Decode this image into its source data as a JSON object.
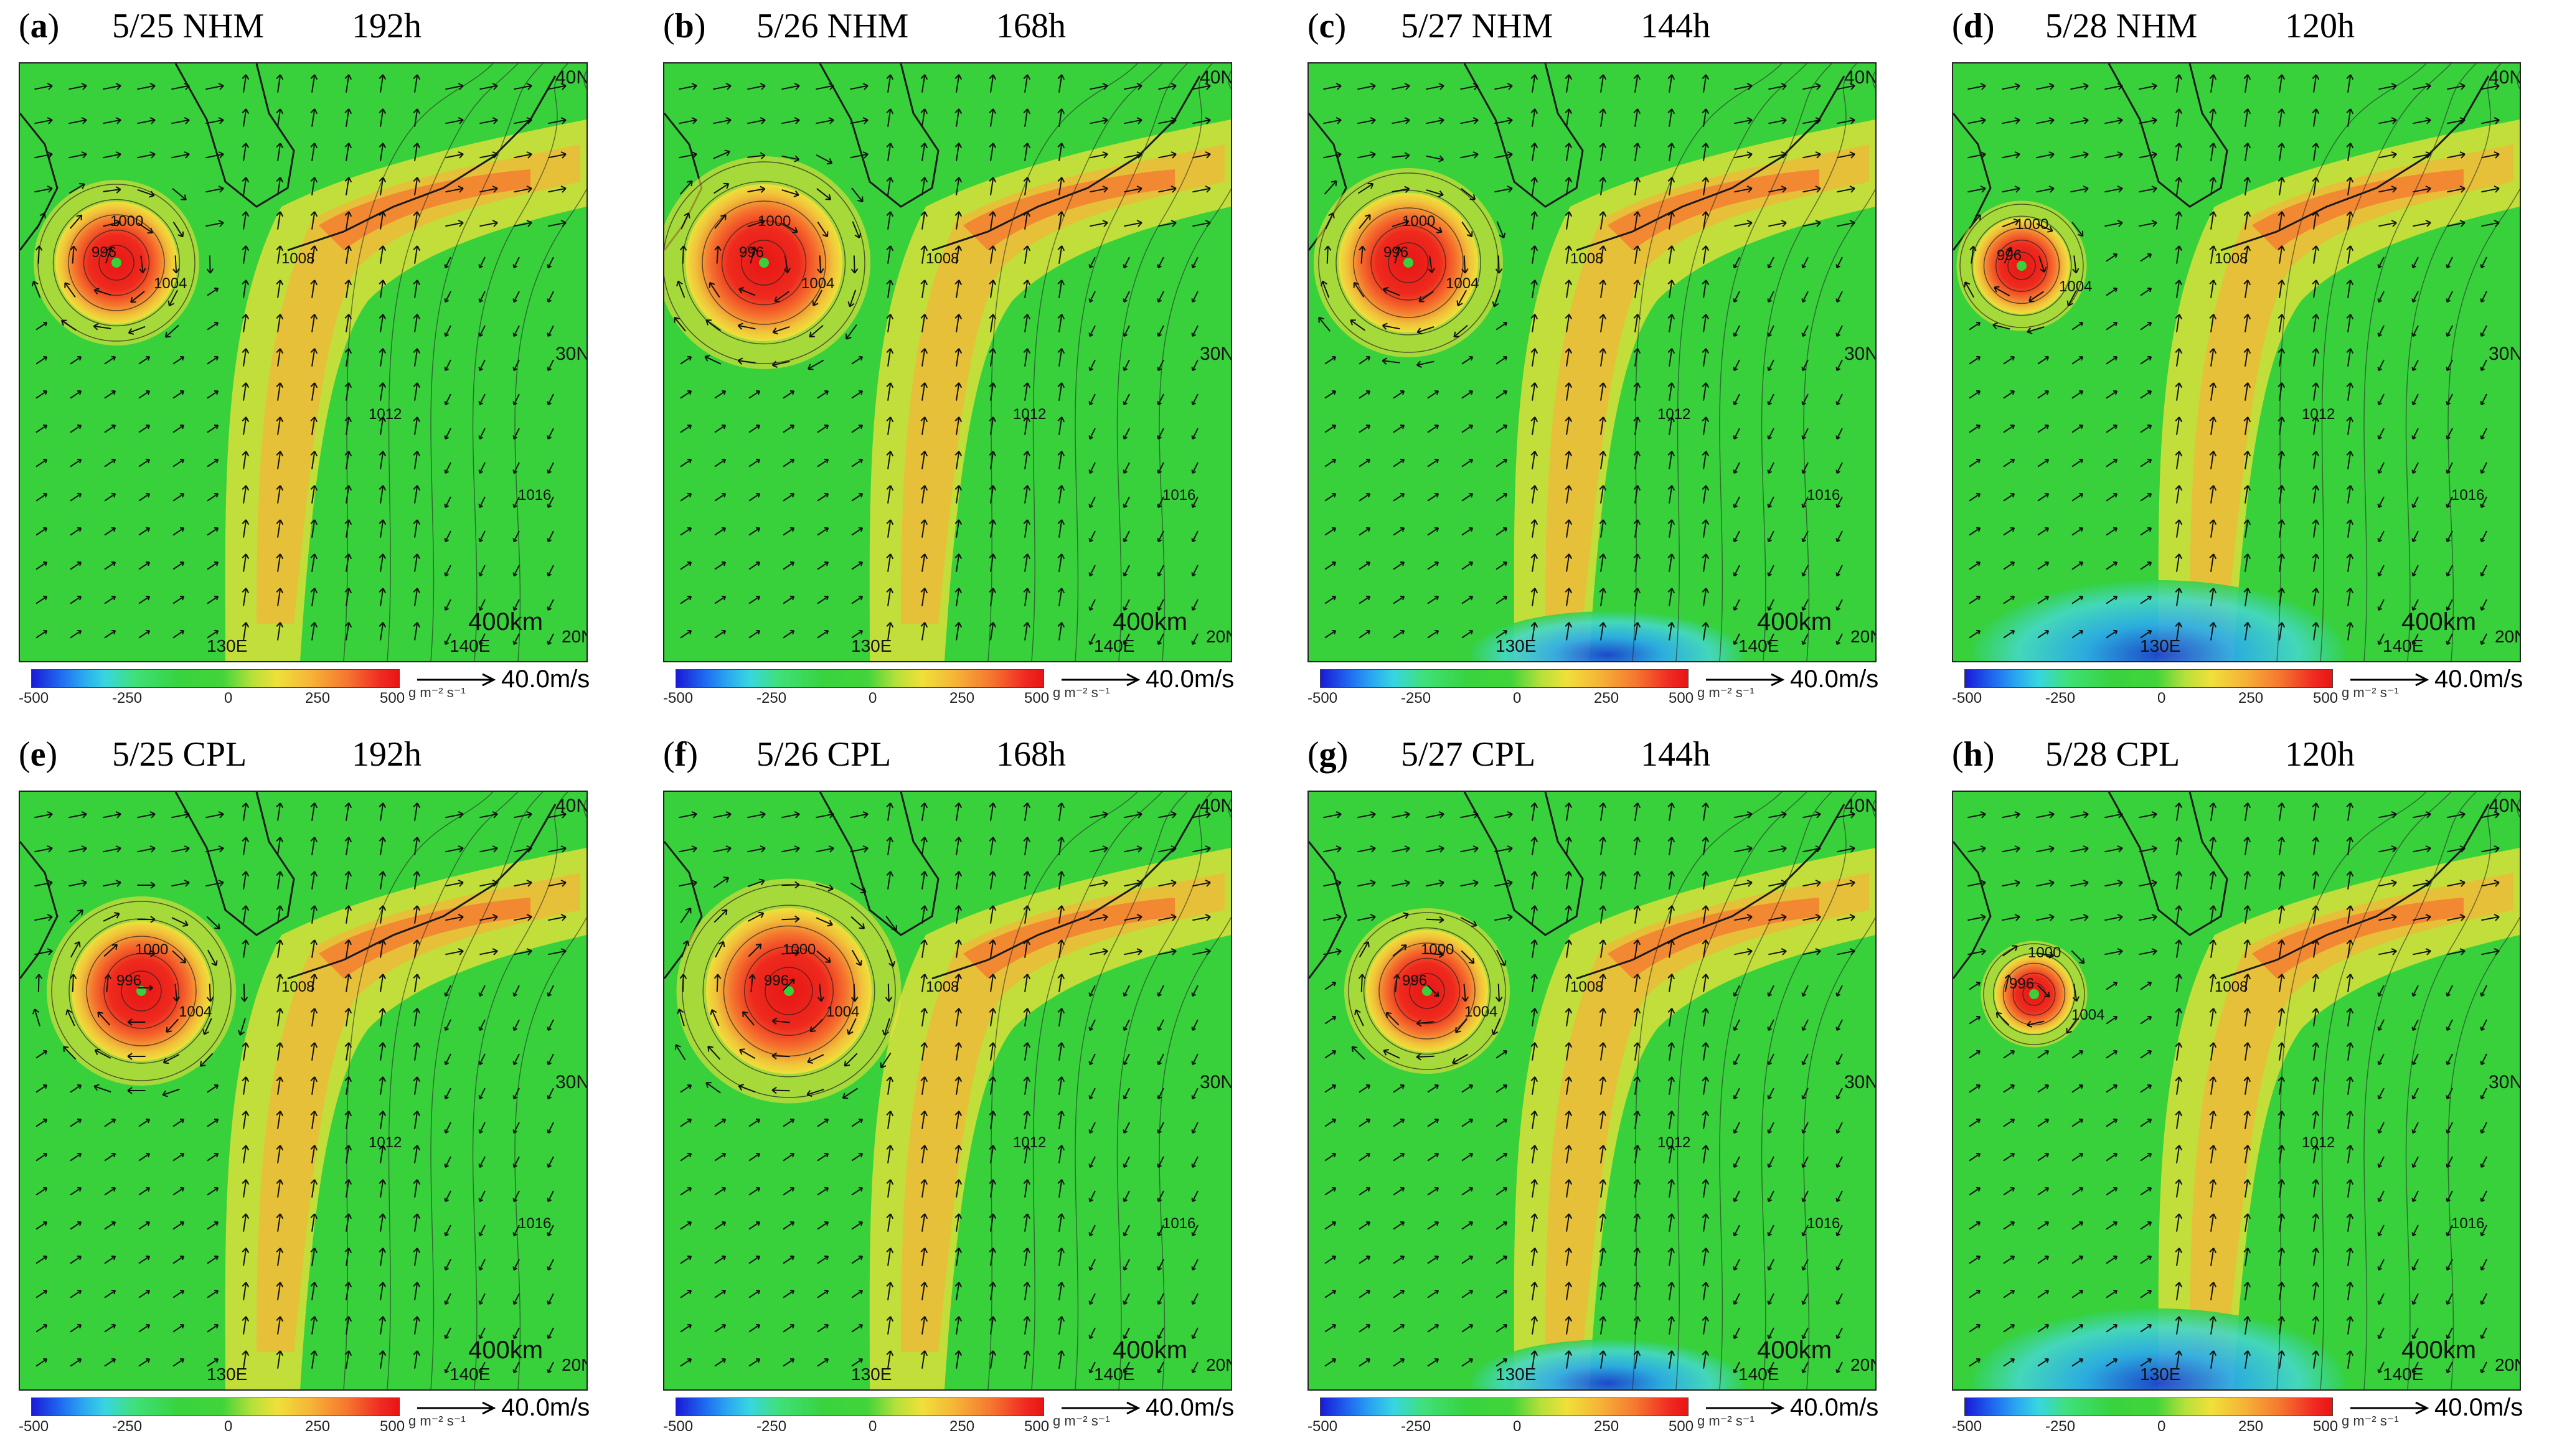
{
  "panels": [
    {
      "label": "a",
      "date": "5/25 NHM",
      "lead": "192h"
    },
    {
      "label": "b",
      "date": "5/26 NHM",
      "lead": "168h"
    },
    {
      "label": "c",
      "date": "5/27 NHM",
      "lead": "144h"
    },
    {
      "label": "d",
      "date": "5/28 NHM",
      "lead": "120h"
    },
    {
      "label": "e",
      "date": "5/25 CPL",
      "lead": "192h"
    },
    {
      "label": "f",
      "date": "5/26 CPL",
      "lead": "168h"
    },
    {
      "label": "g",
      "date": "5/27 CPL",
      "lead": "144h"
    },
    {
      "label": "h",
      "date": "5/28 CPL",
      "lead": "120h"
    }
  ],
  "colorbar": {
    "ticks": [
      "-500",
      "-250",
      "0",
      "250",
      "500"
    ],
    "unit": "g m⁻² s⁻¹",
    "colors": [
      "#1a1ad8",
      "#2aa8f0",
      "#38d33f",
      "#f0e03a",
      "#f5762f",
      "#e81515"
    ]
  },
  "vector_ref": "40.0m/s",
  "map_labels": {
    "lat_40": "40N",
    "lat_30": "30N",
    "lat_20": "20N",
    "lon_130": "130E",
    "lon_140": "140E",
    "scale": "400km",
    "isobars": [
      "996",
      "1000",
      "1004",
      "1008",
      "1012",
      "1016"
    ]
  }
}
